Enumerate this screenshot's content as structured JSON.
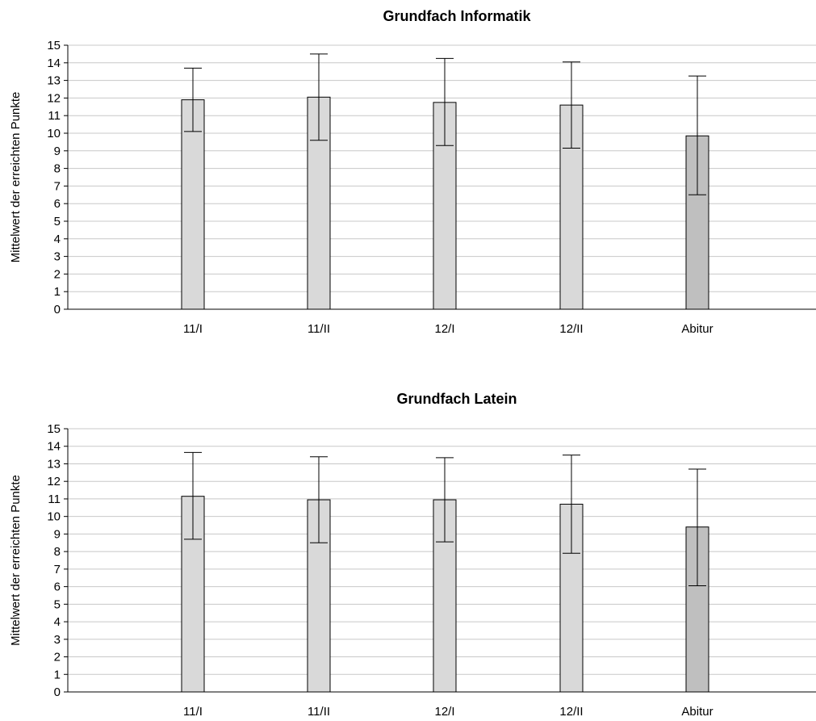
{
  "chart_data": [
    {
      "type": "bar",
      "title": "Grundfach Informatik",
      "ylabel": "Mittelwert der erreichten Punkte",
      "xlabel": "",
      "ylim": [
        0,
        15
      ],
      "yticks": [
        0,
        1,
        2,
        3,
        4,
        5,
        6,
        7,
        8,
        9,
        10,
        11,
        12,
        13,
        14,
        15
      ],
      "grid": true,
      "categories": [
        "11/I",
        "11/II",
        "12/I",
        "12/II",
        "Abitur"
      ],
      "values": [
        11.9,
        12.05,
        11.75,
        11.6,
        9.85
      ],
      "error_low": [
        10.1,
        9.6,
        9.3,
        9.15,
        6.5
      ],
      "error_high": [
        13.7,
        14.5,
        14.25,
        14.05,
        13.25
      ],
      "colors": [
        "#d9d9d9",
        "#d9d9d9",
        "#d9d9d9",
        "#d9d9d9",
        "#bfbfbf"
      ]
    },
    {
      "type": "bar",
      "title": "Grundfach Latein",
      "ylabel": "Mittelwert der erreichten Punkte",
      "xlabel": "",
      "ylim": [
        0,
        15
      ],
      "yticks": [
        0,
        1,
        2,
        3,
        4,
        5,
        6,
        7,
        8,
        9,
        10,
        11,
        12,
        13,
        14,
        15
      ],
      "grid": true,
      "categories": [
        "11/I",
        "11/II",
        "12/I",
        "12/II",
        "Abitur"
      ],
      "values": [
        11.15,
        10.95,
        10.95,
        10.7,
        9.4
      ],
      "error_low": [
        8.7,
        8.5,
        8.55,
        7.9,
        6.05
      ],
      "error_high": [
        13.65,
        13.4,
        13.35,
        13.5,
        12.7
      ],
      "colors": [
        "#d9d9d9",
        "#d9d9d9",
        "#d9d9d9",
        "#d9d9d9",
        "#bfbfbf"
      ]
    }
  ]
}
